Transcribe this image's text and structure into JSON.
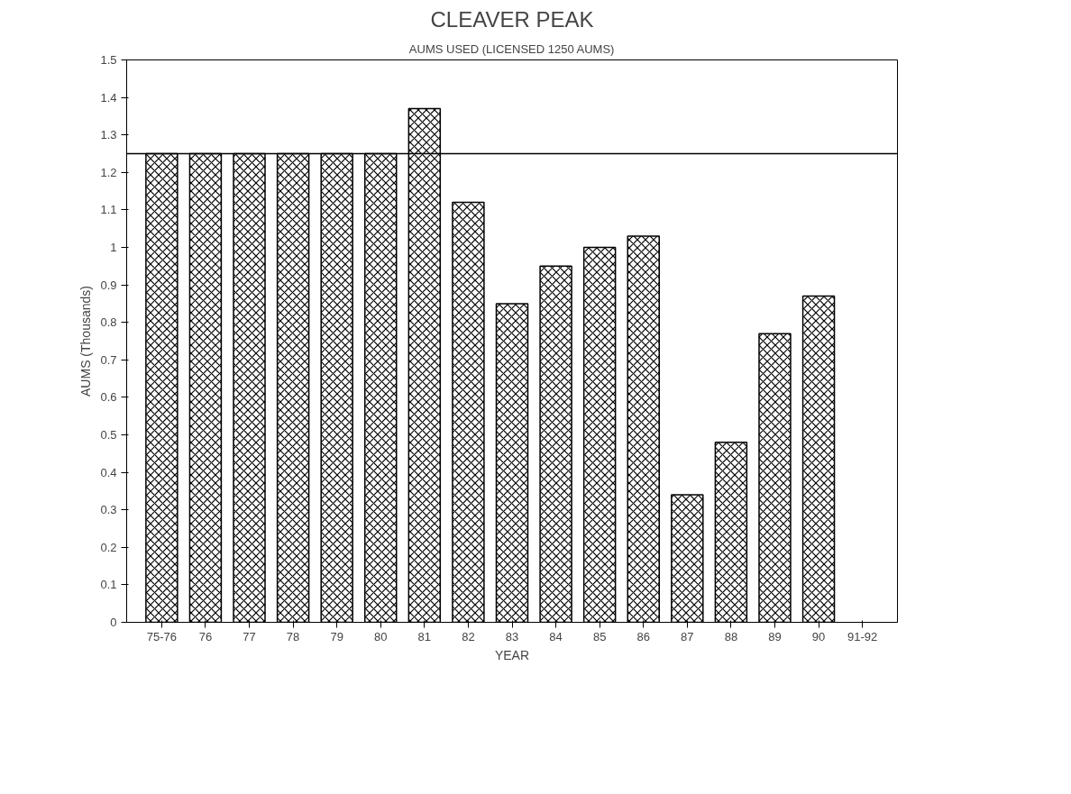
{
  "chart_data": {
    "type": "bar",
    "title": "CLEAVER PEAK",
    "subtitle": "AUMS USED (LICENSED 1250 AUMS)",
    "xlabel": "YEAR",
    "ylabel": "AUMS (Thousands)",
    "categories": [
      "75-76",
      "76",
      "77",
      "78",
      "79",
      "80",
      "81",
      "82",
      "83",
      "84",
      "85",
      "86",
      "87",
      "88",
      "89",
      "90",
      "91-92"
    ],
    "values": [
      1.25,
      1.25,
      1.25,
      1.25,
      1.25,
      1.25,
      1.37,
      1.12,
      0.85,
      0.95,
      1.0,
      1.03,
      0.34,
      0.48,
      0.77,
      0.87,
      null
    ],
    "color": "#000000",
    "ylim": [
      0,
      1.5
    ],
    "yticks": [
      0,
      0.1,
      0.2,
      0.3,
      0.4,
      0.5,
      0.6,
      0.7,
      0.8,
      0.9,
      1,
      1.1,
      1.2,
      1.3,
      1.4,
      1.5
    ],
    "ref_lines": [
      {
        "axis": "y",
        "value": 1.25
      }
    ],
    "grid": false
  }
}
